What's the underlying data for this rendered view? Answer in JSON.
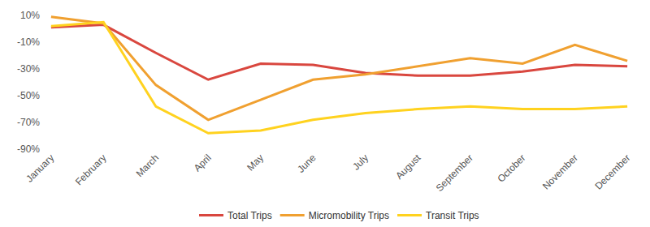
{
  "chart_data": {
    "type": "line",
    "categories": [
      "January",
      "February",
      "March",
      "April",
      "May",
      "June",
      "July",
      "August",
      "September",
      "October",
      "November",
      "December"
    ],
    "series": [
      {
        "name": "Total Trips",
        "color": "#d9473f",
        "values": [
          1,
          3,
          -18,
          -38,
          -26,
          -27,
          -33,
          -35,
          -35,
          -32,
          -27,
          -28
        ]
      },
      {
        "name": "Micromobility Trips",
        "color": "#f0a030",
        "values": [
          9,
          4,
          -42,
          -68,
          -53,
          -38,
          -34,
          -28,
          -22,
          -26,
          -12,
          -24
        ]
      },
      {
        "name": "Transit Trips",
        "color": "#ffd21f",
        "values": [
          2,
          5,
          -58,
          -78,
          -76,
          -68,
          -63,
          -60,
          -58,
          -60,
          -60,
          -58
        ]
      }
    ],
    "ylim": [
      -90,
      10
    ],
    "yticks": [
      {
        "value": 10,
        "label": "10%"
      },
      {
        "value": -10,
        "label": "-10%"
      },
      {
        "value": -30,
        "label": "-30%"
      },
      {
        "value": -50,
        "label": "-50%"
      },
      {
        "value": -70,
        "label": "-70%"
      },
      {
        "value": -90,
        "label": "-90%"
      }
    ],
    "grid": false,
    "legend": "bottom"
  }
}
